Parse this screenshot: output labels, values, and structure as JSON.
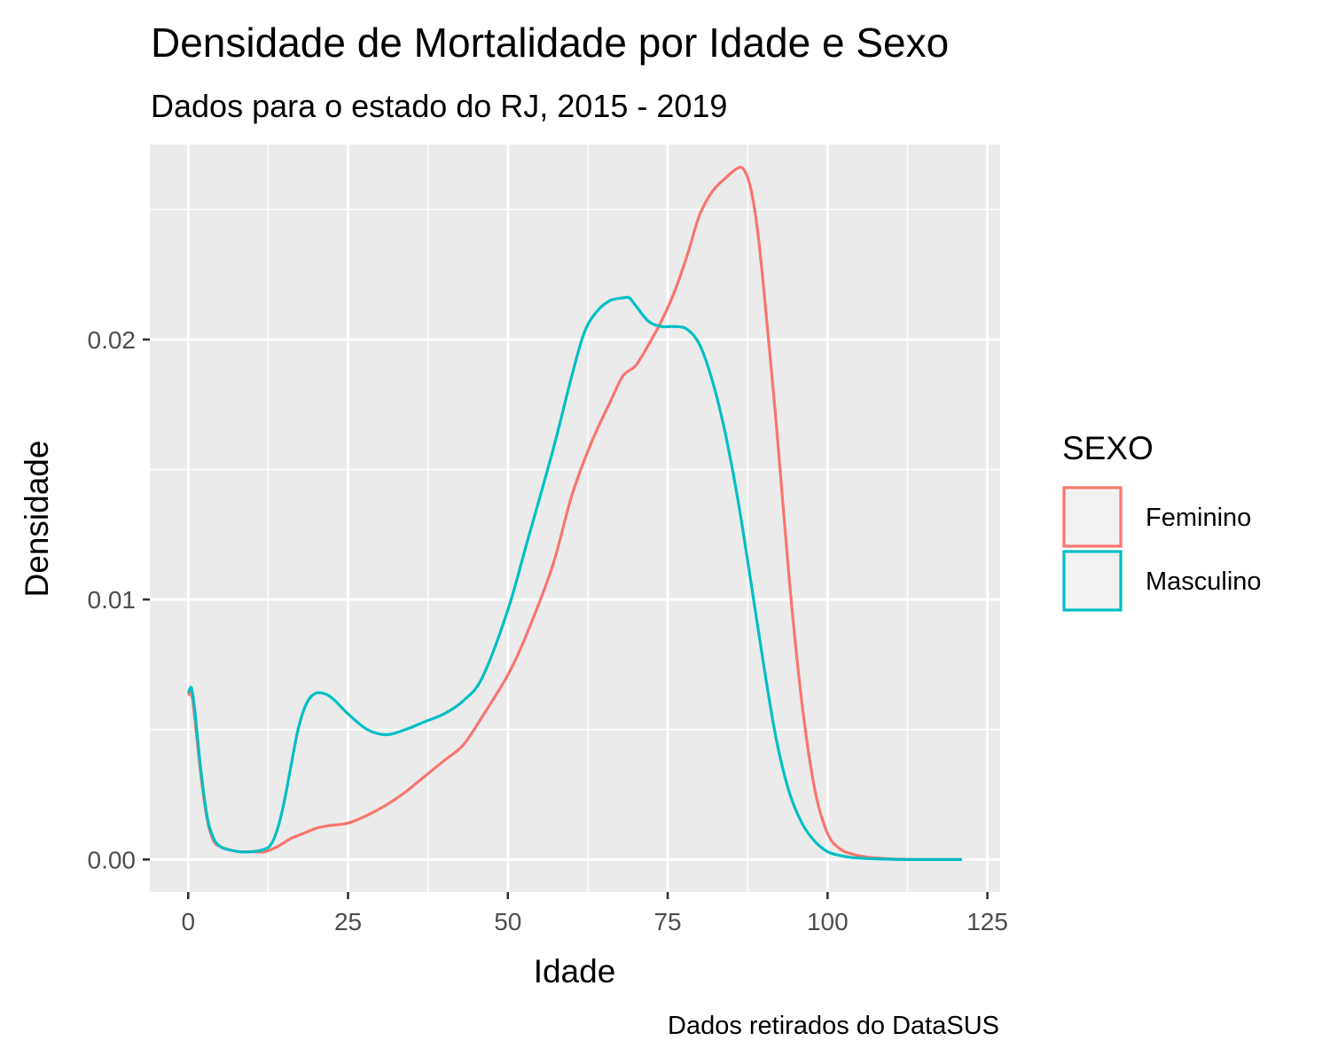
{
  "chart_data": {
    "type": "line",
    "title": "Densidade de Mortalidade por Idade e Sexo",
    "subtitle": "Dados para o estado do RJ, 2015 - 2019",
    "caption": "Dados retirados do DataSUS",
    "xlabel": "Idade",
    "ylabel": "Densidade",
    "xlim": [
      -6,
      127
    ],
    "ylim": [
      -0.00125,
      0.0275
    ],
    "x_ticks": [
      0,
      25,
      50,
      75,
      100,
      125
    ],
    "x_tick_labels": [
      "0",
      "25",
      "50",
      "75",
      "100",
      "125"
    ],
    "y_ticks": [
      0.0,
      0.01,
      0.02
    ],
    "y_tick_labels": [
      "0.00",
      "0.01",
      "0.02"
    ],
    "grid": true,
    "legend_position": "right",
    "legend_title": "SEXO",
    "series": [
      {
        "name": "Feminino",
        "color": "#F8766D",
        "x": [
          0,
          0.5,
          1,
          2,
          3,
          4,
          5,
          6,
          8,
          10,
          12,
          14,
          16,
          18,
          20,
          22,
          25,
          28,
          31,
          34,
          37,
          40,
          43,
          46,
          50,
          53,
          57,
          60,
          63,
          66,
          68,
          70,
          72,
          74,
          76,
          78,
          80,
          82,
          84,
          86,
          87,
          88,
          89,
          90,
          92,
          94,
          96,
          98,
          100,
          102,
          104,
          106,
          108,
          110,
          112,
          115,
          118,
          121
        ],
        "y": [
          0.0063,
          0.0064,
          0.0055,
          0.0032,
          0.0015,
          0.0007,
          0.0005,
          0.0004,
          0.0003,
          0.0003,
          0.0003,
          0.0005,
          0.0008,
          0.001,
          0.0012,
          0.0013,
          0.0014,
          0.0017,
          0.0021,
          0.0026,
          0.0032,
          0.0038,
          0.0044,
          0.0055,
          0.0071,
          0.0087,
          0.0113,
          0.014,
          0.016,
          0.0176,
          0.0186,
          0.019,
          0.0198,
          0.0207,
          0.0218,
          0.0232,
          0.0248,
          0.0257,
          0.0262,
          0.0266,
          0.0265,
          0.0258,
          0.0243,
          0.022,
          0.0167,
          0.0108,
          0.006,
          0.0027,
          0.001,
          0.0004,
          0.0002,
          0.0001,
          5e-05,
          2e-05,
          1e-05,
          0.0,
          0.0,
          0.0
        ]
      },
      {
        "name": "Masculino",
        "color": "#00BFC4",
        "x": [
          0,
          0.5,
          1,
          2,
          3,
          4,
          5,
          6,
          8,
          10,
          12,
          13,
          14,
          15,
          16,
          17,
          18,
          19,
          20,
          21,
          22,
          23,
          25,
          28,
          31,
          34,
          37,
          40,
          43,
          46,
          50,
          53,
          57,
          60,
          62,
          64,
          66,
          68,
          69,
          70,
          72,
          74,
          76,
          78,
          80,
          82,
          84,
          86,
          88,
          90,
          92,
          94,
          96,
          98,
          100,
          102,
          104,
          106,
          108,
          110,
          112,
          115,
          118,
          121
        ],
        "y": [
          0.0064,
          0.0066,
          0.0058,
          0.0034,
          0.0016,
          0.0008,
          0.0005,
          0.0004,
          0.0003,
          0.0003,
          0.0004,
          0.0006,
          0.0012,
          0.0022,
          0.0035,
          0.0048,
          0.0057,
          0.0062,
          0.0064,
          0.0064,
          0.0063,
          0.0061,
          0.0056,
          0.005,
          0.0048,
          0.005,
          0.0053,
          0.0056,
          0.0061,
          0.007,
          0.0096,
          0.0122,
          0.0157,
          0.0186,
          0.0203,
          0.0211,
          0.0215,
          0.0216,
          0.0216,
          0.0213,
          0.0207,
          0.0205,
          0.0205,
          0.0204,
          0.0198,
          0.0184,
          0.0164,
          0.0138,
          0.0107,
          0.0075,
          0.0046,
          0.0026,
          0.0014,
          0.0007,
          0.0003,
          0.00015,
          7e-05,
          4e-05,
          2e-05,
          1e-05,
          0.0,
          0.0,
          0.0,
          0.0
        ]
      }
    ]
  }
}
